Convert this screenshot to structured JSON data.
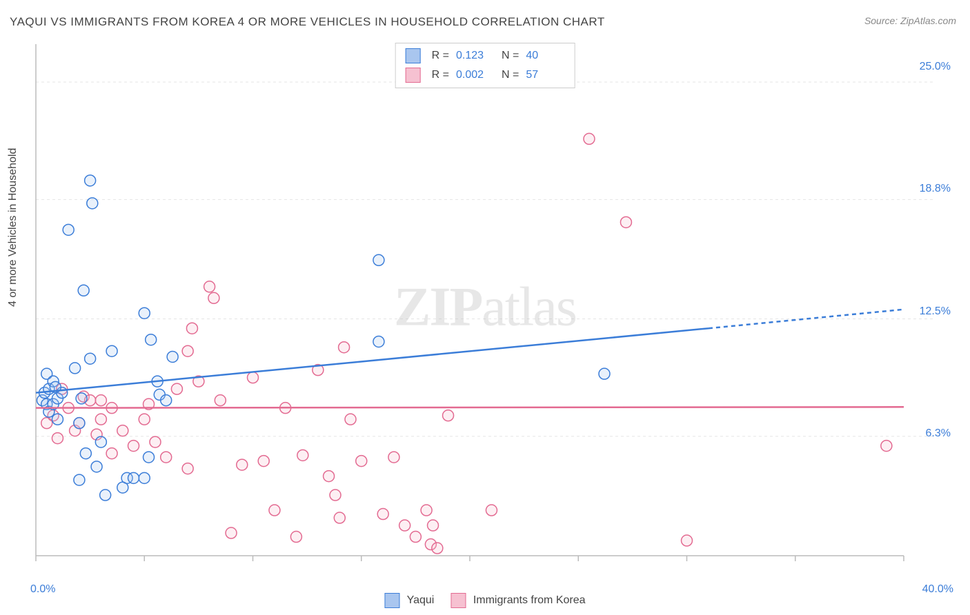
{
  "title": "YAQUI VS IMMIGRANTS FROM KOREA 4 OR MORE VEHICLES IN HOUSEHOLD CORRELATION CHART",
  "source": "Source: ZipAtlas.com",
  "y_axis_label": "4 or more Vehicles in Household",
  "watermark": "ZIPatlas",
  "chart": {
    "type": "scatter",
    "xlim": [
      0,
      40
    ],
    "ylim": [
      0,
      27
    ],
    "x_ticks": [
      0,
      5,
      10,
      15,
      20,
      25,
      30,
      35,
      40
    ],
    "x_tick_labels_shown": {
      "0": "0.0%",
      "40": "40.0%"
    },
    "y_ticks": [
      6.3,
      12.5,
      18.8,
      25.0
    ],
    "y_tick_labels": [
      "6.3%",
      "12.5%",
      "18.8%",
      "25.0%"
    ],
    "grid_color": "#e5e5e5",
    "axis_color": "#bbbbbb",
    "background_color": "#ffffff",
    "marker_radius": 8,
    "marker_stroke_width": 1.5,
    "marker_fill_opacity": 0.25,
    "trend_line_width": 2.5,
    "trend_dash": "6,5"
  },
  "series": [
    {
      "name": "Yaqui",
      "color_stroke": "#3b7dd8",
      "color_fill": "#a9c6ef",
      "R": "0.123",
      "N": "40",
      "trend": {
        "x1": 0,
        "y1": 8.6,
        "x2": 31,
        "y2": 12.0,
        "x3": 40,
        "y3": 13.0
      },
      "points": [
        [
          0.3,
          8.2
        ],
        [
          0.4,
          8.6
        ],
        [
          0.5,
          8.0
        ],
        [
          0.5,
          9.6
        ],
        [
          0.6,
          7.6
        ],
        [
          0.6,
          8.8
        ],
        [
          0.8,
          8.0
        ],
        [
          0.8,
          9.2
        ],
        [
          1.0,
          7.2
        ],
        [
          1.0,
          8.3
        ],
        [
          1.2,
          8.6
        ],
        [
          1.5,
          17.2
        ],
        [
          2.0,
          4.0
        ],
        [
          2.0,
          7.0
        ],
        [
          2.2,
          14.0
        ],
        [
          2.3,
          5.4
        ],
        [
          2.5,
          10.4
        ],
        [
          2.5,
          19.8
        ],
        [
          2.6,
          18.6
        ],
        [
          2.8,
          4.7
        ],
        [
          3.0,
          6.0
        ],
        [
          3.5,
          10.8
        ],
        [
          4.0,
          3.6
        ],
        [
          4.2,
          4.1
        ],
        [
          4.5,
          4.1
        ],
        [
          5.0,
          4.1
        ],
        [
          5.0,
          12.8
        ],
        [
          5.2,
          5.2
        ],
        [
          5.3,
          11.4
        ],
        [
          5.6,
          9.2
        ],
        [
          5.7,
          8.5
        ],
        [
          6.0,
          8.2
        ],
        [
          6.3,
          10.5
        ],
        [
          15.8,
          11.3
        ],
        [
          15.8,
          15.6
        ],
        [
          26.2,
          9.6
        ],
        [
          3.2,
          3.2
        ],
        [
          1.8,
          9.9
        ],
        [
          0.9,
          8.9
        ],
        [
          2.1,
          8.3
        ]
      ]
    },
    {
      "name": "Immigrants from Korea",
      "color_stroke": "#e36a91",
      "color_fill": "#f6c1d1",
      "R": "0.002",
      "N": "57",
      "trend": {
        "x1": 0,
        "y1": 7.8,
        "x2": 40,
        "y2": 7.85
      },
      "points": [
        [
          0.5,
          7.0
        ],
        [
          0.8,
          7.4
        ],
        [
          1.0,
          6.2
        ],
        [
          1.2,
          8.8
        ],
        [
          1.5,
          7.8
        ],
        [
          1.8,
          6.6
        ],
        [
          2.0,
          7.0
        ],
        [
          2.2,
          8.4
        ],
        [
          2.5,
          8.2
        ],
        [
          2.8,
          6.4
        ],
        [
          3.0,
          7.2
        ],
        [
          3.0,
          8.2
        ],
        [
          3.5,
          5.4
        ],
        [
          3.5,
          7.8
        ],
        [
          4.0,
          6.6
        ],
        [
          4.5,
          5.8
        ],
        [
          5.0,
          7.2
        ],
        [
          5.2,
          8.0
        ],
        [
          5.5,
          6.0
        ],
        [
          6.0,
          5.2
        ],
        [
          6.5,
          8.8
        ],
        [
          7.0,
          4.6
        ],
        [
          7.0,
          10.8
        ],
        [
          7.2,
          12.0
        ],
        [
          7.5,
          9.2
        ],
        [
          8.0,
          14.2
        ],
        [
          8.2,
          13.6
        ],
        [
          8.5,
          8.2
        ],
        [
          9.0,
          1.2
        ],
        [
          9.5,
          4.8
        ],
        [
          10.0,
          9.4
        ],
        [
          10.5,
          5.0
        ],
        [
          11.0,
          2.4
        ],
        [
          11.5,
          7.8
        ],
        [
          12.0,
          1.0
        ],
        [
          12.3,
          5.3
        ],
        [
          13.0,
          9.8
        ],
        [
          13.5,
          4.2
        ],
        [
          14.0,
          2.0
        ],
        [
          14.2,
          11.0
        ],
        [
          14.5,
          7.2
        ],
        [
          15.0,
          5.0
        ],
        [
          16.0,
          2.2
        ],
        [
          16.5,
          5.2
        ],
        [
          17.0,
          1.6
        ],
        [
          17.5,
          1.0
        ],
        [
          18.0,
          2.4
        ],
        [
          18.2,
          0.6
        ],
        [
          18.3,
          1.6
        ],
        [
          18.5,
          0.4
        ],
        [
          19.0,
          7.4
        ],
        [
          21.0,
          2.4
        ],
        [
          25.5,
          22.0
        ],
        [
          27.2,
          17.6
        ],
        [
          30.0,
          0.8
        ],
        [
          39.2,
          5.8
        ],
        [
          13.8,
          3.2
        ]
      ]
    }
  ],
  "bottom_legend": [
    {
      "label": "Yaqui",
      "stroke": "#3b7dd8",
      "fill": "#a9c6ef"
    },
    {
      "label": "Immigrants from Korea",
      "stroke": "#e36a91",
      "fill": "#f6c1d1"
    }
  ]
}
